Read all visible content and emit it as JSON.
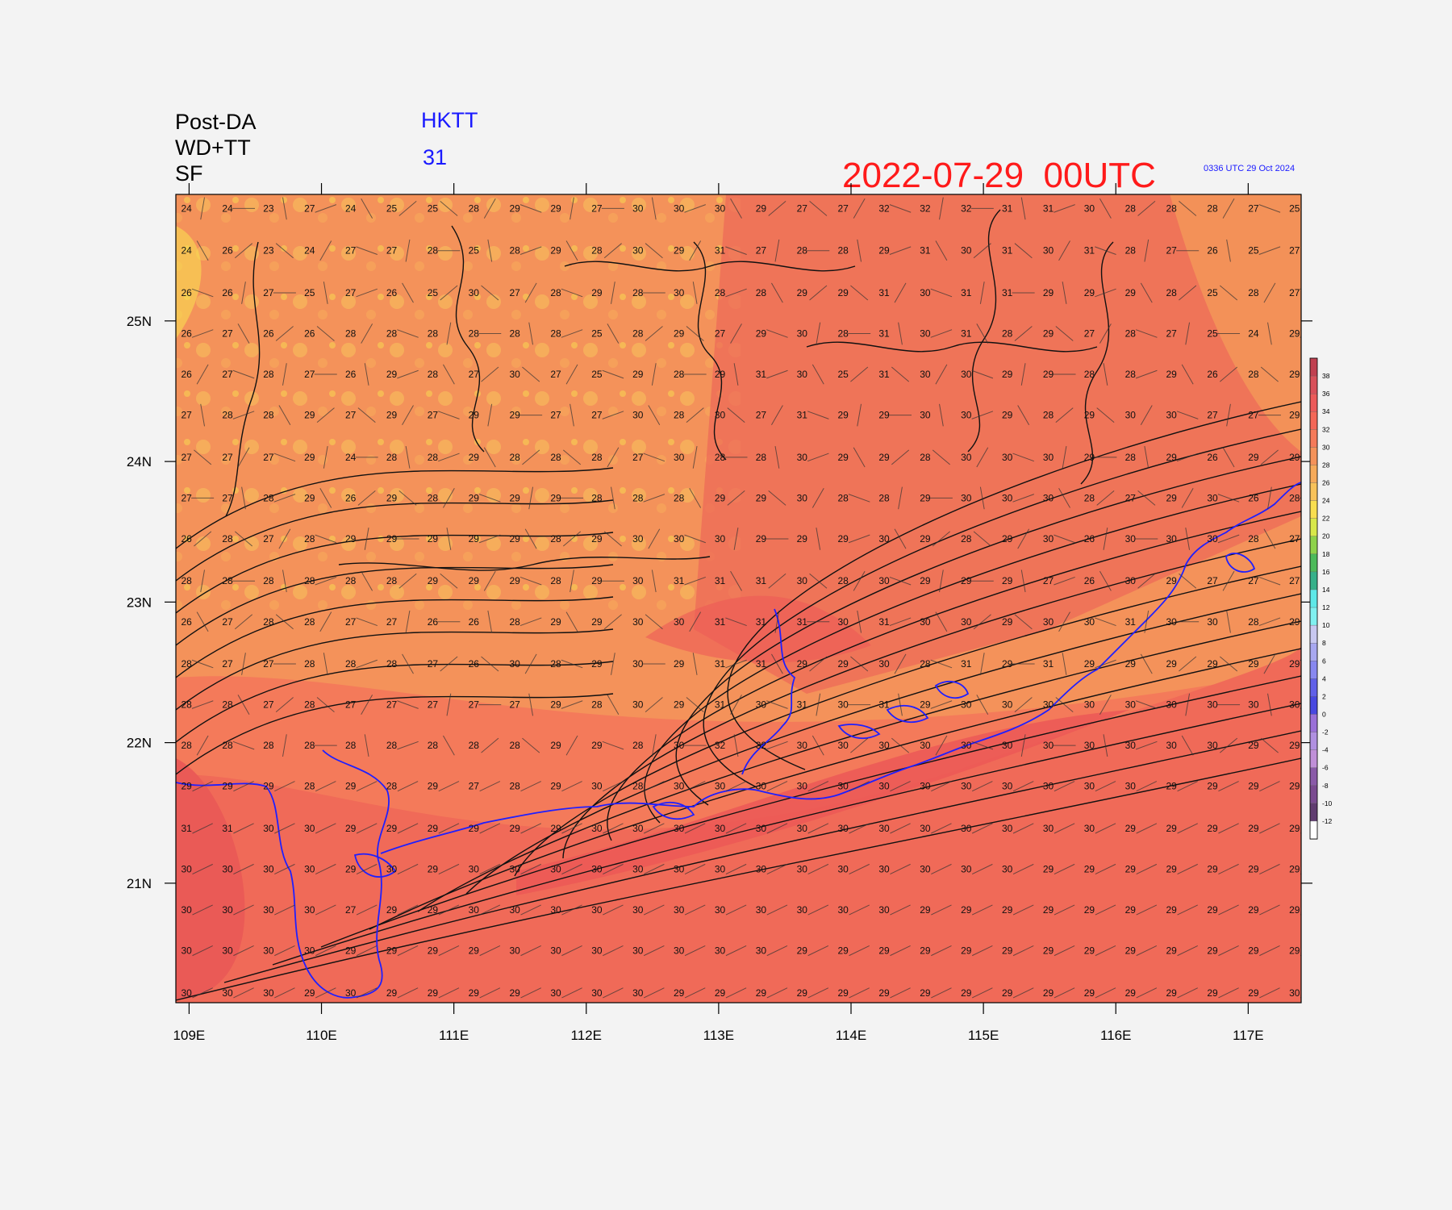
{
  "header": {
    "line1": "Post-DA",
    "line2": "WD+TT",
    "line3": "SF",
    "station": "HKTT",
    "station_value": "31",
    "datetime": "2022-07-29  00UTC",
    "generated": "0336 UTC 29 Oct 2024"
  },
  "map": {
    "lon_range": [
      108.9,
      117.4
    ],
    "lat_range": [
      20.15,
      25.9
    ],
    "lon_ticks": [
      "109E",
      "110E",
      "111E",
      "112E",
      "113E",
      "114E",
      "115E",
      "116E",
      "117E"
    ],
    "lon_tick_values": [
      109,
      110,
      111,
      112,
      113,
      114,
      115,
      116,
      117
    ],
    "lat_ticks": [
      "21N",
      "22N",
      "23N",
      "24N",
      "25N"
    ],
    "lat_tick_values": [
      21,
      22,
      23,
      24,
      25
    ],
    "station_grid_lon": [
      108.98,
      109.29,
      109.6,
      109.91,
      110.22,
      110.53,
      110.84,
      111.15,
      111.46,
      111.77,
      112.08,
      112.39,
      112.7,
      113.01,
      113.32,
      113.63,
      113.94,
      114.25,
      114.56,
      114.87,
      115.18,
      115.49,
      115.8,
      116.11,
      116.42,
      116.73,
      117.04,
      117.35
    ],
    "station_grid_lat": [
      25.8,
      25.5,
      25.2,
      24.91,
      24.62,
      24.33,
      24.03,
      23.74,
      23.45,
      23.15,
      22.86,
      22.56,
      22.27,
      21.98,
      21.69,
      21.39,
      21.1,
      20.81,
      20.52,
      20.22
    ],
    "station_temps": [
      [
        24,
        24,
        23,
        27,
        24,
        25,
        25,
        28,
        29,
        29,
        27,
        30,
        30,
        30,
        29,
        27,
        27,
        32,
        32,
        32,
        31,
        31,
        30,
        28,
        28,
        28,
        27,
        25
      ],
      [
        24,
        26,
        23,
        24,
        27,
        27,
        28,
        25,
        28,
        29,
        28,
        30,
        29,
        31,
        27,
        28,
        28,
        29,
        31,
        30,
        31,
        30,
        31,
        28,
        27,
        26,
        25,
        27
      ],
      [
        26,
        26,
        27,
        25,
        27,
        26,
        25,
        30,
        27,
        28,
        29,
        28,
        30,
        28,
        28,
        29,
        29,
        31,
        30,
        31,
        31,
        29,
        29,
        29,
        28,
        25,
        28,
        27
      ],
      [
        26,
        27,
        26,
        26,
        28,
        28,
        28,
        28,
        28,
        28,
        25,
        28,
        29,
        27,
        29,
        30,
        28,
        31,
        30,
        31,
        28,
        29,
        27,
        28,
        27,
        25,
        24,
        29
      ],
      [
        26,
        27,
        28,
        27,
        26,
        29,
        28,
        27,
        30,
        27,
        25,
        29,
        28,
        29,
        31,
        30,
        25,
        31,
        30,
        30,
        29,
        29,
        28,
        28,
        29,
        26,
        28,
        29
      ],
      [
        27,
        28,
        28,
        29,
        27,
        29,
        27,
        29,
        29,
        27,
        27,
        30,
        28,
        30,
        27,
        31,
        29,
        29,
        30,
        30,
        29,
        28,
        29,
        30,
        30,
        27,
        27,
        29
      ],
      [
        27,
        27,
        27,
        29,
        24,
        28,
        28,
        29,
        28,
        28,
        28,
        27,
        30,
        28,
        28,
        30,
        29,
        29,
        28,
        30,
        30,
        30,
        29,
        28,
        29,
        26,
        29,
        29
      ],
      [
        27,
        27,
        28,
        29,
        26,
        29,
        28,
        29,
        29,
        29,
        28,
        28,
        28,
        29,
        29,
        30,
        28,
        28,
        29,
        30,
        30,
        30,
        28,
        27,
        29,
        30,
        26,
        28
      ],
      [
        26,
        28,
        27,
        28,
        29,
        29,
        29,
        29,
        29,
        28,
        29,
        30,
        30,
        30,
        29,
        29,
        29,
        30,
        29,
        28,
        29,
        30,
        26,
        30,
        30,
        30,
        28,
        27
      ],
      [
        28,
        28,
        28,
        28,
        28,
        28,
        29,
        29,
        29,
        28,
        29,
        30,
        31,
        31,
        31,
        30,
        28,
        30,
        29,
        29,
        29,
        27,
        26,
        30,
        29,
        27,
        27,
        27
      ],
      [
        26,
        27,
        28,
        28,
        27,
        27,
        26,
        26,
        28,
        29,
        29,
        30,
        30,
        31,
        31,
        31,
        30,
        31,
        30,
        30,
        29,
        30,
        30,
        31,
        30,
        30,
        28,
        29
      ],
      [
        28,
        27,
        27,
        28,
        28,
        28,
        27,
        26,
        30,
        28,
        29,
        30,
        29,
        31,
        31,
        29,
        29,
        30,
        28,
        31,
        29,
        31,
        29,
        29,
        29,
        29,
        29,
        29
      ],
      [
        28,
        28,
        27,
        28,
        27,
        27,
        27,
        27,
        27,
        29,
        28,
        30,
        29,
        31,
        30,
        31,
        30,
        31,
        29,
        30,
        30,
        30,
        30,
        30,
        30,
        30,
        30,
        30
      ],
      [
        28,
        28,
        28,
        28,
        28,
        28,
        28,
        28,
        28,
        29,
        29,
        28,
        30,
        32,
        32,
        30,
        30,
        30,
        30,
        30,
        30,
        30,
        30,
        30,
        30,
        30,
        29,
        29
      ],
      [
        29,
        29,
        29,
        28,
        29,
        28,
        29,
        27,
        28,
        29,
        30,
        28,
        30,
        30,
        30,
        30,
        30,
        30,
        30,
        30,
        30,
        30,
        30,
        30,
        29,
        29,
        29,
        29
      ],
      [
        31,
        31,
        30,
        30,
        29,
        29,
        29,
        29,
        29,
        29,
        30,
        30,
        30,
        30,
        30,
        30,
        30,
        30,
        30,
        30,
        30,
        30,
        30,
        29,
        29,
        29,
        29,
        29
      ],
      [
        30,
        30,
        30,
        30,
        29,
        30,
        29,
        30,
        30,
        30,
        30,
        30,
        30,
        30,
        30,
        30,
        30,
        30,
        30,
        30,
        30,
        29,
        29,
        29,
        29,
        29,
        29,
        29
      ],
      [
        30,
        30,
        30,
        30,
        27,
        29,
        29,
        30,
        30,
        30,
        30,
        30,
        30,
        30,
        30,
        30,
        30,
        30,
        29,
        29,
        29,
        29,
        29,
        29,
        29,
        29,
        29,
        29
      ],
      [
        30,
        30,
        30,
        30,
        29,
        29,
        29,
        29,
        30,
        30,
        30,
        30,
        30,
        30,
        30,
        29,
        29,
        29,
        29,
        29,
        29,
        29,
        29,
        29,
        29,
        29,
        29,
        29
      ],
      [
        30,
        30,
        30,
        29,
        30,
        29,
        29,
        29,
        29,
        30,
        30,
        30,
        29,
        29,
        29,
        29,
        29,
        29,
        29,
        29,
        29,
        29,
        29,
        29,
        29,
        29,
        29,
        30
      ]
    ]
  },
  "colorbar": {
    "labels": [
      "38",
      "36",
      "34",
      "32",
      "30",
      "28",
      "26",
      "24",
      "22",
      "20",
      "18",
      "16",
      "14",
      "12",
      "10",
      "8",
      "6",
      "4",
      "2",
      "0",
      "-2",
      "-4",
      "-6",
      "-8",
      "-10",
      "-12"
    ],
    "colors": [
      "#c04050",
      "#d8505a",
      "#ec5a5a",
      "#f46858",
      "#f47a5a",
      "#f4925a",
      "#f6aa5a",
      "#f8c25a",
      "#f8de50",
      "#d8e84a",
      "#8ed24a",
      "#4cba5a",
      "#36b08a",
      "#5ee8e8",
      "#80f0f0",
      "#c8c8f0",
      "#a8a8f0",
      "#8888f0",
      "#6060e8",
      "#4848e0",
      "#9a70d8",
      "#b090e0",
      "#c090d8",
      "#8a5aa8",
      "#7a4a90",
      "#603c70",
      "#ffffff"
    ]
  }
}
